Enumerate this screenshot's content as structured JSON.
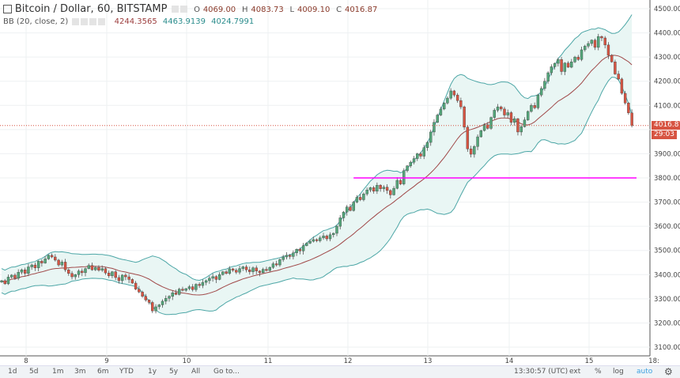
{
  "header": {
    "symbol": "Bitcoin / Dollar, 60, BITSTAMP",
    "o_label": "O",
    "o": "4069.00",
    "h_label": "H",
    "h": "4083.73",
    "l_label": "L",
    "l": "4009.10",
    "c_label": "C",
    "c": "4016.87"
  },
  "indicator": {
    "name": "BB (20, close, 2)",
    "basis": "4244.3565",
    "upper": "4463.9139",
    "lower": "4024.7991"
  },
  "price_label": "4016.87",
  "countdown": "29:03",
  "toolbar": {
    "ranges": [
      "1d",
      "5d",
      "1m",
      "3m",
      "6m",
      "YTD",
      "1y",
      "5y",
      "All",
      "Go to..."
    ],
    "time": "13:30:57 (UTC)",
    "ext": "ext",
    "pct": "%",
    "log": "log",
    "auto": "auto",
    "settings_icon": "gear-icon"
  },
  "colors": {
    "up": "#53a77a",
    "down": "#d75442",
    "band": "#4ca6a6",
    "basis": "#a04848",
    "fill": "#e9f6f4",
    "support": "#ff00ff",
    "price_line": "#d75442"
  },
  "chart_data": {
    "type": "candlestick",
    "interval_minutes": 60,
    "yaxis": {
      "ticks": [
        4500,
        4400,
        4300,
        4200,
        4100,
        4000,
        3900,
        3800,
        3700,
        3600,
        3500,
        3400,
        3300,
        3200,
        3100
      ],
      "range": [
        3100,
        4500
      ]
    },
    "xaxis": {
      "ticks": [
        "8",
        "9",
        "10",
        "11",
        "12",
        "13",
        "14",
        "15",
        "18:"
      ]
    },
    "first_candle_hour": "7 16:00",
    "closes": [
      3375,
      3362,
      3390,
      3398,
      3385,
      3410,
      3420,
      3405,
      3432,
      3440,
      3428,
      3456,
      3448,
      3465,
      3480,
      3473,
      3460,
      3440,
      3452,
      3420,
      3405,
      3391,
      3400,
      3415,
      3408,
      3425,
      3438,
      3420,
      3430,
      3418,
      3425,
      3407,
      3395,
      3412,
      3388,
      3375,
      3398,
      3391,
      3380,
      3365,
      3340,
      3328,
      3310,
      3295,
      3285,
      3250,
      3267,
      3275,
      3290,
      3302,
      3310,
      3325,
      3318,
      3340,
      3335,
      3342,
      3350,
      3338,
      3360,
      3355,
      3368,
      3375,
      3385,
      3392,
      3380,
      3400,
      3412,
      3405,
      3424,
      3418,
      3410,
      3425,
      3432,
      3420,
      3412,
      3428,
      3415,
      3408,
      3422,
      3417,
      3430,
      3445,
      3440,
      3462,
      3473,
      3480,
      3475,
      3490,
      3505,
      3498,
      3520,
      3530,
      3538,
      3545,
      3540,
      3552,
      3560,
      3548,
      3565,
      3571,
      3600,
      3635,
      3659,
      3680,
      3665,
      3700,
      3720,
      3710,
      3734,
      3750,
      3760,
      3745,
      3770,
      3755,
      3762,
      3748,
      3730,
      3757,
      3790,
      3775,
      3830,
      3850,
      3865,
      3880,
      3900,
      3890,
      3925,
      3947,
      3990,
      4030,
      4060,
      4085,
      4110,
      4130,
      4160,
      4143,
      4120,
      4094,
      4010,
      3920,
      3898,
      3930,
      3970,
      3996,
      4020,
      4005,
      4050,
      4080,
      4094,
      4085,
      4060,
      4070,
      4030,
      4045,
      3990,
      4012,
      4040,
      4075,
      4100,
      4090,
      4143,
      4170,
      4200,
      4235,
      4260,
      4274,
      4290,
      4240,
      4275,
      4258,
      4280,
      4300,
      4290,
      4330,
      4345,
      4356,
      4370,
      4340,
      4385,
      4379,
      4350,
      4307,
      4280,
      4230,
      4209,
      4150,
      4110,
      4069,
      4016.87
    ],
    "last_candle": {
      "open": 4069.0,
      "high": 4083.73,
      "low": 4009.1,
      "close": 4016.87
    },
    "indicator": "Bollinger Bands (20, close, 2)",
    "support_line": {
      "price": 3800,
      "from_candle": 105
    },
    "last_price_line": 4016.87,
    "grid": true
  }
}
